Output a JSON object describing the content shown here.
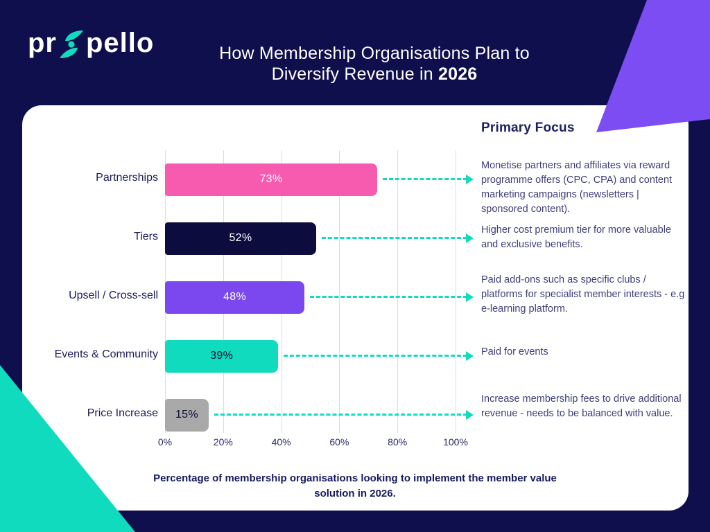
{
  "page": {
    "background": "#0F0F4D"
  },
  "logo": {
    "text_pre": "pr",
    "text_post": "pello",
    "icon": "propello-swirl-icon"
  },
  "header": {
    "title_line1": "How Membership Organisations Plan to",
    "title_line2_prefix": "Diversify Revenue in ",
    "title_year": "2026"
  },
  "colors": {
    "background_navy": "#0F0F4D",
    "card_white": "#FFFFFF",
    "accent_teal": "#10DBBE",
    "accent_purple": "#7C4DF3",
    "accent_pink": "#F75BB0",
    "text_navy": "#1B1C5C",
    "description_text": "#3D3D7A",
    "gridline": "#DCDCE3"
  },
  "chart_data": {
    "type": "bar",
    "orientation": "horizontal",
    "title": "How Membership Organisations Plan to Diversify Revenue in 2026",
    "categories": [
      "Partnerships",
      "Tiers",
      "Upsell / Cross-sell",
      "Events & Community",
      "Price Increase"
    ],
    "values": [
      73,
      52,
      48,
      39,
      15
    ],
    "value_labels": [
      "73%",
      "52%",
      "48%",
      "39%",
      "15%"
    ],
    "bar_colors": [
      "#F75BB0",
      "#0C0C3E",
      "#7A48EE",
      "#10DBBE",
      "#A9A9A9"
    ],
    "value_label_colors": [
      "#FFFFFF",
      "#FFFFFF",
      "#FFFFFF",
      "#0C0C3E",
      "#0C0C3E"
    ],
    "x_ticks": [
      "0%",
      "20%",
      "40%",
      "60%",
      "80%",
      "100%"
    ],
    "xlim": [
      0,
      100
    ],
    "grid": "vertical-gridlines",
    "legend": "none",
    "annotations": {
      "heading": "Primary Focus",
      "connector_style": "dashed-teal-arrow",
      "descriptions": [
        "Monetise partners and affiliates via reward programme offers (CPC, CPA) and content marketing campaigns (newsletters | sponsored content).",
        "Higher cost premium tier for more valuable and exclusive benefits.",
        "Paid add-ons such as specific clubs / platforms for specialist member interests - e.g e-learning platform.",
        "Paid for events",
        "Increase membership fees to drive additional revenue - needs to be balanced with value."
      ]
    },
    "caption": "Percentage of membership organisations looking to implement the member value solution in 2026."
  }
}
